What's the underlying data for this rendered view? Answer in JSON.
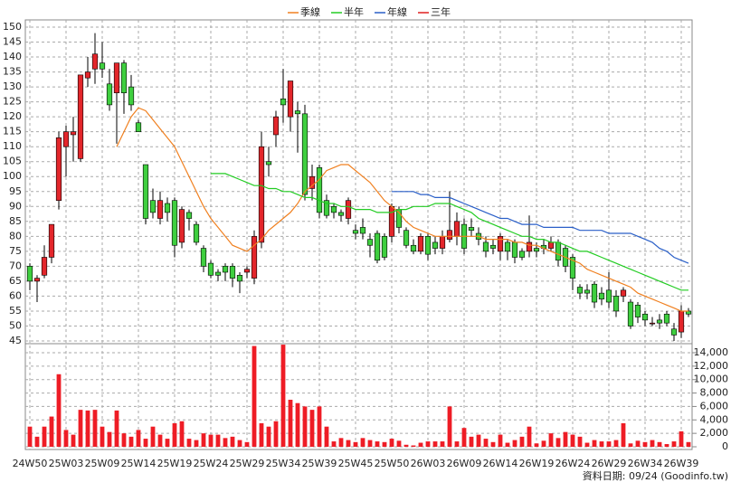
{
  "chart_data": {
    "type": "candlestick",
    "categories": [
      "24W50",
      null,
      null,
      null,
      null,
      "25W03",
      null,
      null,
      null,
      null,
      "25W09",
      null,
      null,
      null,
      null,
      "25W14",
      null,
      null,
      null,
      null,
      "25W19",
      null,
      null,
      null,
      null,
      "25W24",
      null,
      null,
      null,
      null,
      "25W29",
      null,
      null,
      null,
      null,
      "25W34",
      null,
      null,
      null,
      null,
      "25W39",
      null,
      null,
      null,
      null,
      "25W45",
      null,
      null,
      null,
      null,
      "25W50",
      null,
      null,
      null,
      null,
      "26W03",
      null,
      null,
      null,
      null,
      "26W09",
      null,
      null,
      null,
      null,
      "26W14",
      null,
      null,
      null,
      null,
      "26W19",
      null,
      null,
      null,
      null,
      "26W24",
      null,
      null,
      null,
      null,
      "26W29",
      null,
      null,
      null,
      null,
      "26W34",
      null,
      null,
      null,
      null,
      "26W39",
      null
    ],
    "open": [
      70,
      65,
      67,
      73,
      92,
      110,
      114,
      106,
      133,
      136,
      138,
      131,
      128,
      138,
      130,
      118,
      104,
      92,
      86,
      91,
      92,
      78,
      88,
      84,
      76,
      71,
      68,
      70,
      70,
      67,
      68,
      66,
      78,
      105,
      114,
      126,
      120,
      122,
      121,
      96,
      103,
      92,
      90,
      88,
      86,
      82,
      83,
      79,
      81,
      80,
      80,
      89,
      82,
      77,
      75,
      80,
      78,
      76,
      79,
      80,
      84,
      83,
      81,
      78,
      77,
      75,
      78,
      78,
      75,
      75,
      76,
      77,
      76,
      78,
      76,
      73,
      63,
      62,
      64,
      61,
      62,
      60,
      60,
      58,
      57,
      54,
      51,
      52,
      54,
      49,
      48,
      55
    ],
    "high": [
      71,
      67,
      77,
      84,
      115,
      117,
      120,
      134,
      140,
      148,
      145,
      136,
      138,
      139,
      134,
      119,
      104,
      96,
      95,
      93,
      93,
      90,
      89,
      85,
      77,
      72,
      69,
      71,
      71,
      68,
      70,
      82,
      115,
      110,
      122,
      136,
      132,
      125,
      124,
      104,
      104,
      94,
      91,
      89,
      93,
      84,
      86,
      81,
      82,
      81,
      91,
      90,
      83,
      79,
      81,
      81,
      80,
      82,
      95,
      88,
      86,
      86,
      83,
      80,
      79,
      81,
      79,
      79,
      76,
      87,
      78,
      79,
      80,
      79,
      77,
      74,
      64,
      64,
      65,
      63,
      68,
      62,
      63,
      59,
      58,
      55,
      53,
      54,
      55,
      51,
      57,
      56
    ],
    "low": [
      62,
      58,
      66,
      71,
      89,
      100,
      105,
      105,
      130,
      131,
      133,
      122,
      111,
      121,
      122,
      115,
      84,
      86,
      84,
      85,
      73,
      76,
      82,
      77,
      68,
      66,
      65,
      65,
      63,
      61,
      66,
      64,
      76,
      100,
      110,
      118,
      115,
      108,
      92,
      92,
      86,
      86,
      86,
      85,
      84,
      79,
      79,
      73,
      71,
      72,
      78,
      81,
      76,
      74,
      74,
      72,
      74,
      74,
      78,
      77,
      74,
      80,
      77,
      73,
      74,
      72,
      72,
      71,
      72,
      73,
      73,
      74,
      75,
      70,
      68,
      62,
      59,
      59,
      56,
      57,
      56,
      53,
      58,
      49,
      51,
      50,
      50,
      49,
      50,
      45,
      46,
      53
    ],
    "close": [
      65,
      66,
      73,
      84,
      113,
      115,
      115,
      134,
      135,
      141,
      136,
      124,
      138,
      128,
      124,
      115,
      86,
      88,
      92,
      88,
      77,
      89,
      86,
      78,
      70,
      67,
      67,
      68,
      66,
      65,
      69,
      80,
      110,
      104,
      120,
      124,
      132,
      121,
      94,
      100,
      88,
      87,
      88,
      87,
      92,
      81,
      81,
      77,
      72,
      73,
      90,
      83,
      77,
      75,
      80,
      74,
      76,
      80,
      82,
      85,
      76,
      82,
      79,
      75,
      76,
      80,
      75,
      73,
      73,
      78,
      75,
      76,
      78,
      72,
      70,
      66,
      61,
      61,
      58,
      59,
      58,
      55,
      62,
      50,
      53,
      52,
      51,
      51,
      51,
      47,
      55,
      54
    ],
    "up_color": "#e3262b",
    "down_color": "#3fcf3f",
    "series": [
      {
        "name": "季線",
        "color": "#f08020",
        "values": [
          null,
          null,
          null,
          null,
          null,
          null,
          null,
          null,
          null,
          null,
          null,
          null,
          110,
          115,
          120,
          123,
          122,
          119,
          116,
          113,
          110,
          105,
          100,
          95,
          90,
          86,
          83,
          80,
          77,
          76,
          75,
          77,
          79,
          82,
          84,
          86,
          88,
          91,
          95,
          97,
          99,
          102,
          103,
          104,
          104,
          102,
          100,
          98,
          95,
          92,
          90,
          88,
          85,
          83,
          82,
          81,
          80,
          80,
          80,
          80,
          80,
          80,
          80,
          79,
          79,
          79,
          79,
          78,
          78,
          77,
          77,
          76,
          75,
          74,
          73,
          72,
          71,
          69,
          68,
          67,
          66,
          65,
          64,
          63,
          61,
          60,
          59,
          58,
          57,
          56,
          55,
          55
        ]
      },
      {
        "name": "半年",
        "color": "#22cc22",
        "values": [
          null,
          null,
          null,
          null,
          null,
          null,
          null,
          null,
          null,
          null,
          null,
          null,
          null,
          null,
          null,
          null,
          null,
          null,
          null,
          null,
          null,
          null,
          null,
          null,
          null,
          101,
          101,
          101,
          100,
          99,
          98,
          97,
          97,
          96,
          96,
          95,
          95,
          94,
          93,
          93,
          92,
          91,
          91,
          90,
          90,
          89,
          89,
          89,
          88,
          88,
          88,
          89,
          89,
          90,
          90,
          90,
          91,
          91,
          91,
          90,
          89,
          88,
          86,
          85,
          84,
          83,
          82,
          81,
          80,
          80,
          79,
          79,
          78,
          78,
          77,
          76,
          75,
          75,
          74,
          73,
          72,
          71,
          70,
          69,
          68,
          67,
          66,
          65,
          64,
          63,
          62,
          62
        ]
      },
      {
        "name": "年線",
        "color": "#2a5fc8",
        "values": [
          null,
          null,
          null,
          null,
          null,
          null,
          null,
          null,
          null,
          null,
          null,
          null,
          null,
          null,
          null,
          null,
          null,
          null,
          null,
          null,
          null,
          null,
          null,
          null,
          null,
          null,
          null,
          null,
          null,
          null,
          null,
          null,
          null,
          null,
          null,
          null,
          null,
          null,
          null,
          null,
          null,
          null,
          null,
          null,
          null,
          null,
          null,
          null,
          null,
          null,
          95,
          95,
          95,
          95,
          94,
          94,
          93,
          93,
          93,
          92,
          91,
          90,
          89,
          88,
          87,
          86,
          86,
          85,
          84,
          84,
          84,
          83,
          83,
          83,
          83,
          83,
          82,
          82,
          82,
          82,
          81,
          81,
          81,
          81,
          80,
          79,
          78,
          76,
          75,
          73,
          72,
          71
        ]
      },
      {
        "name": "三年",
        "color": "#e02020",
        "values": [
          null,
          null,
          null,
          null,
          null,
          null,
          null,
          null,
          null,
          null,
          null,
          null,
          null,
          null,
          null,
          null,
          null,
          null,
          null,
          null,
          null,
          null,
          null,
          null,
          null,
          null,
          null,
          null,
          null,
          null,
          null,
          null,
          null,
          null,
          null,
          null,
          null,
          null,
          null,
          null,
          null,
          null,
          null,
          null,
          null,
          null,
          null,
          null,
          null,
          null,
          null,
          null,
          null,
          null,
          null,
          null,
          null,
          null,
          null,
          null,
          null,
          null,
          null,
          null,
          null,
          null,
          null,
          null,
          null,
          null,
          null,
          null,
          null,
          null,
          null,
          null,
          null,
          null,
          null,
          null,
          null,
          null,
          null,
          null,
          null,
          null,
          null,
          null,
          null,
          null,
          null,
          null
        ]
      }
    ],
    "ylim": [
      45,
      150
    ],
    "yticks": [
      45,
      50,
      55,
      60,
      65,
      70,
      75,
      80,
      85,
      90,
      95,
      100,
      105,
      110,
      115,
      120,
      125,
      130,
      135,
      140,
      145,
      150
    ],
    "volume": {
      "color": "#ee1c25",
      "values": [
        3000,
        1500,
        3000,
        4500,
        10800,
        2500,
        1800,
        5500,
        5400,
        5500,
        3000,
        2200,
        5400,
        2000,
        1500,
        2500,
        1200,
        3000,
        1800,
        1200,
        3500,
        3800,
        1200,
        1000,
        2000,
        1800,
        1800,
        1300,
        1500,
        1000,
        700,
        15000,
        3500,
        3000,
        3800,
        15200,
        7000,
        6500,
        6000,
        5500,
        6000,
        3000,
        800,
        1300,
        1000,
        700,
        1300,
        1000,
        800,
        700,
        1200,
        900,
        300,
        200,
        600,
        800,
        800,
        800,
        6000,
        800,
        2800,
        1500,
        1800,
        1200,
        700,
        1800,
        600,
        1000,
        1500,
        3000,
        500,
        900,
        2000,
        1300,
        2200,
        1800,
        1500,
        600,
        1000,
        800,
        800,
        1000,
        3500,
        500,
        900,
        700,
        1000,
        700,
        400,
        800,
        2300,
        700
      ],
      "ylim": [
        0,
        14000
      ],
      "yticks": [
        0,
        {
          "value": 2000,
          "label": "2,000"
        },
        {
          "value": 4000,
          "label": "4,000"
        },
        {
          "value": 6000,
          "label": "6,000"
        },
        {
          "value": 8000,
          "label": "8,000"
        },
        {
          "value": 10000,
          "label": "10,000"
        },
        {
          "value": 12000,
          "label": "12,000"
        },
        {
          "value": 14000,
          "label": "14,000"
        }
      ]
    },
    "grid": true,
    "source": "資料日期: 09/24 (Goodinfo.tw)"
  }
}
